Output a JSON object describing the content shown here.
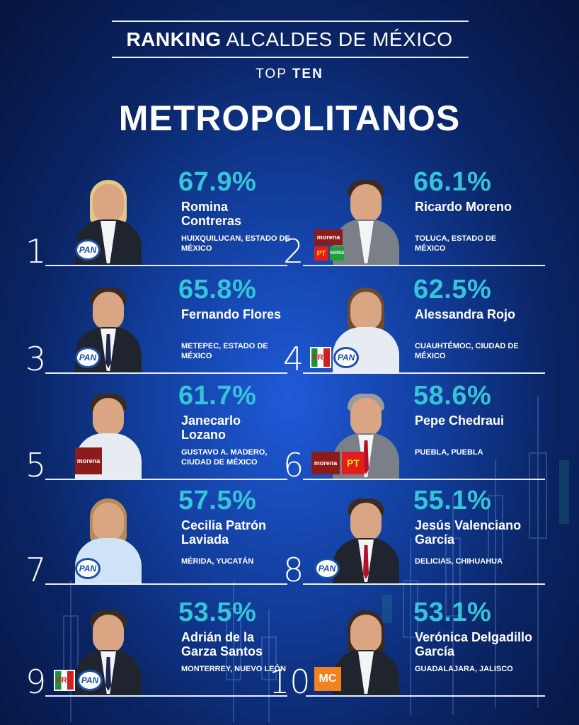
{
  "header": {
    "title_bold": "RANKING",
    "title_rest": "ALCALDES DE MÉXICO",
    "subtitle_light": "TOP",
    "subtitle_bold": "TEN",
    "category": "METROPOLITANOS"
  },
  "colors": {
    "percent": "#35c4d8",
    "background": "#123f9e",
    "text": "#ffffff"
  },
  "rankings": [
    {
      "rank": "1",
      "percent": "67.9%",
      "name": "Romina Contreras",
      "location": "HUIXQUILUCAN, ESTADO DE MÉXICO",
      "parties": [
        "PAN"
      ]
    },
    {
      "rank": "2",
      "percent": "66.1%",
      "name": "Ricardo Moreno",
      "location": "TOLUCA, ESTADO DE MÉXICO",
      "parties": [
        "morena",
        "PT",
        "VERDE"
      ]
    },
    {
      "rank": "3",
      "percent": "65.8%",
      "name": "Fernando Flores",
      "location": "METEPEC, ESTADO DE MÉXICO",
      "parties": [
        "PAN"
      ]
    },
    {
      "rank": "4",
      "percent": "62.5%",
      "name": "Alessandra Rojo",
      "location": "CUAUHTÉMOC, CIUDAD DE MÉXICO",
      "parties": [
        "PRD",
        "PAN"
      ]
    },
    {
      "rank": "5",
      "percent": "61.7%",
      "name": "Janecarlo Lozano",
      "location": "GUSTAVO A. MADERO, CIUDAD DE MÉXICO",
      "parties": [
        "morena"
      ]
    },
    {
      "rank": "6",
      "percent": "58.6%",
      "name": "Pepe Chedraui",
      "location": "PUEBLA, PUEBLA",
      "parties": [
        "morena",
        "PT"
      ]
    },
    {
      "rank": "7",
      "percent": "57.5%",
      "name": "Cecilia Patrón Laviada",
      "location": "MÉRIDA, YUCATÁN",
      "parties": [
        "PAN"
      ]
    },
    {
      "rank": "8",
      "percent": "55.1%",
      "name": "Jesús Valenciano García",
      "location": "DELICIAS, CHIHUAHUA",
      "parties": [
        "PAN"
      ]
    },
    {
      "rank": "9",
      "percent": "53.5%",
      "name": "Adrián de la Garza Santos",
      "location": "MONTERREY, NUEVO LEÓN",
      "parties": [
        "PRD",
        "PAN"
      ]
    },
    {
      "rank": "10",
      "percent": "53.1%",
      "name": "Verónica Delgadillo García",
      "location": "GUADALAJARA, JALISCO",
      "parties": [
        "MC"
      ]
    }
  ]
}
